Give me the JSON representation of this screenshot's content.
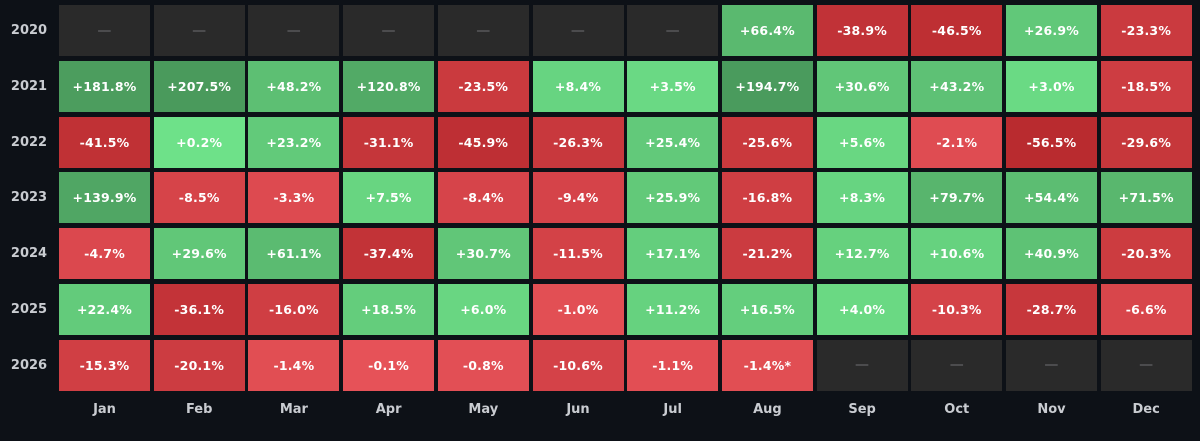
{
  "chart_data": {
    "type": "heatmap",
    "rows": [
      "2020",
      "2021",
      "2022",
      "2023",
      "2024",
      "2025",
      "2026"
    ],
    "columns": [
      "Jan",
      "Feb",
      "Mar",
      "Apr",
      "May",
      "Jun",
      "Jul",
      "Aug",
      "Sep",
      "Oct",
      "Nov",
      "Dec"
    ],
    "values": [
      [
        null,
        null,
        null,
        null,
        null,
        null,
        null,
        66.4,
        -38.9,
        -46.5,
        26.9,
        -23.3
      ],
      [
        181.8,
        207.5,
        48.2,
        120.8,
        -23.5,
        8.4,
        3.5,
        194.7,
        30.6,
        43.2,
        3.0,
        -18.5
      ],
      [
        -41.5,
        0.2,
        23.2,
        -31.1,
        -45.9,
        -26.3,
        25.4,
        -25.6,
        5.6,
        -2.1,
        -56.5,
        -29.6
      ],
      [
        139.9,
        -8.5,
        -3.3,
        7.5,
        -8.4,
        -9.4,
        25.9,
        -16.8,
        8.3,
        79.7,
        54.4,
        71.5
      ],
      [
        -4.7,
        29.6,
        61.1,
        -37.4,
        30.7,
        -11.5,
        17.1,
        -21.2,
        12.7,
        10.6,
        40.9,
        -20.3
      ],
      [
        22.4,
        -36.1,
        -16.0,
        18.5,
        6.0,
        -1.0,
        11.2,
        16.5,
        4.0,
        -10.3,
        -28.7,
        -6.6
      ],
      [
        -15.3,
        -20.1,
        -1.4,
        -0.1,
        -0.8,
        -10.6,
        -1.1,
        -1.4,
        null,
        null,
        null,
        null
      ]
    ],
    "labels": [
      [
        "—",
        "—",
        "—",
        "—",
        "—",
        "—",
        "—",
        "+66.4%",
        "-38.9%",
        "-46.5%",
        "+26.9%",
        "-23.3%"
      ],
      [
        "+181.8%",
        "+207.5%",
        "+48.2%",
        "+120.8%",
        "-23.5%",
        "+8.4%",
        "+3.5%",
        "+194.7%",
        "+30.6%",
        "+43.2%",
        "+3.0%",
        "-18.5%"
      ],
      [
        "-41.5%",
        "+0.2%",
        "+23.2%",
        "-31.1%",
        "-45.9%",
        "-26.3%",
        "+25.4%",
        "-25.6%",
        "+5.6%",
        "-2.1%",
        "-56.5%",
        "-29.6%"
      ],
      [
        "+139.9%",
        "-8.5%",
        "-3.3%",
        "+7.5%",
        "-8.4%",
        "-9.4%",
        "+25.9%",
        "-16.8%",
        "+8.3%",
        "+79.7%",
        "+54.4%",
        "+71.5%"
      ],
      [
        "-4.7%",
        "+29.6%",
        "+61.1%",
        "-37.4%",
        "+30.7%",
        "-11.5%",
        "+17.1%",
        "-21.2%",
        "+12.7%",
        "+10.6%",
        "+40.9%",
        "-20.3%"
      ],
      [
        "+22.4%",
        "-36.1%",
        "-16.0%",
        "+18.5%",
        "+6.0%",
        "-1.0%",
        "+11.2%",
        "+16.5%",
        "+4.0%",
        "-10.3%",
        "-28.7%",
        "-6.6%"
      ],
      [
        "-15.3%",
        "-20.1%",
        "-1.4%",
        "-0.1%",
        "-0.8%",
        "-10.6%",
        "-1.1%",
        "-1.4%*",
        "—",
        "—",
        "—",
        "—"
      ]
    ],
    "colors": {
      "background": "#0d1117",
      "empty_cell": "#2a2a2a",
      "positive_light": "#6fe38a",
      "positive_dark": "#4a9a5c",
      "negative_light": "#e8545a",
      "negative_dark": "#b82a2e"
    }
  }
}
